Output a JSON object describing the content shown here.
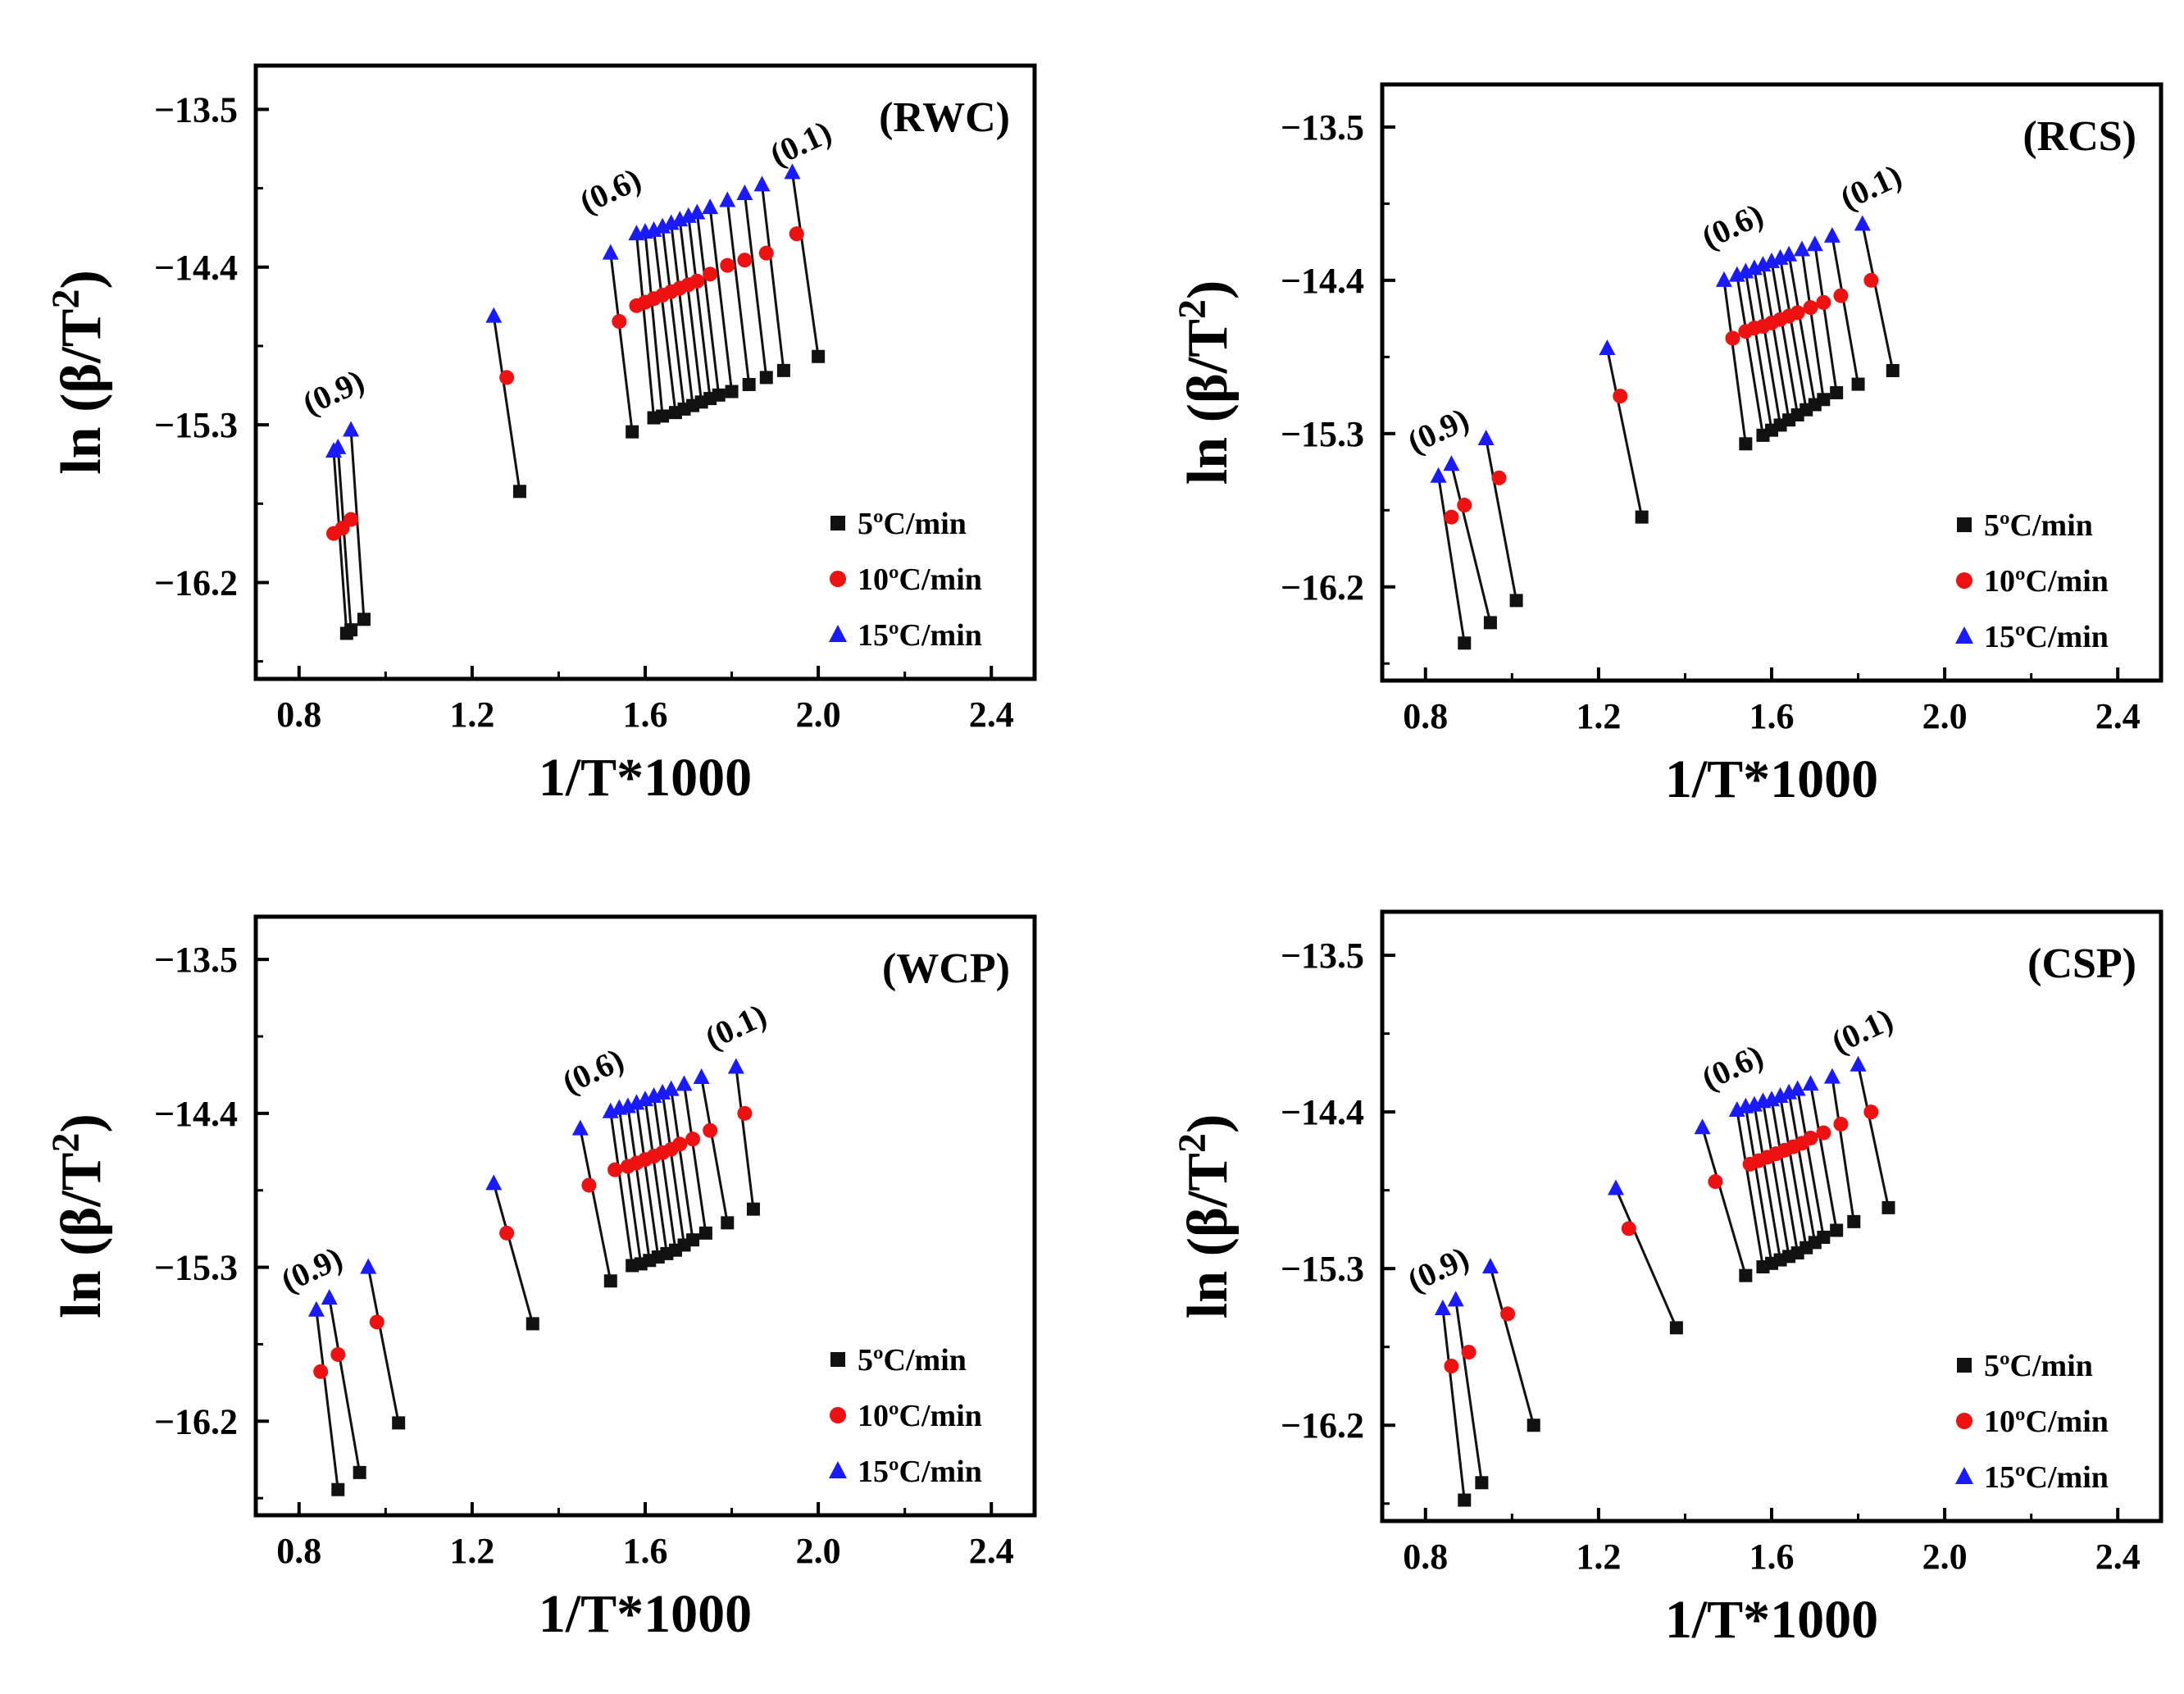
{
  "chart_data": [
    {
      "type": "scatter",
      "panel_label": "(RWC)",
      "xlabel": "1/T*1000",
      "ylabel": "ln (β/T²)",
      "xlim": [
        0.7,
        2.5
      ],
      "ylim": [
        -16.75,
        -13.25
      ],
      "xticks": [
        "0.8",
        "1.2",
        "1.6",
        "2.0",
        "2.4"
      ],
      "yticks": [
        "−13.5",
        "−14.4",
        "−15.3",
        "−16.2"
      ],
      "series": [
        {
          "name": "5ºC/min",
          "marker": "square",
          "color": "#111111",
          "x": [
            2.0,
            1.92,
            1.88,
            1.84,
            1.8,
            1.77,
            1.75,
            1.73,
            1.71,
            1.69,
            1.67,
            1.64,
            1.62,
            1.57,
            1.31,
            0.95,
            0.92,
            0.91
          ],
          "y": [
            -14.91,
            -14.99,
            -15.03,
            -15.07,
            -15.11,
            -15.13,
            -15.15,
            -15.17,
            -15.19,
            -15.21,
            -15.23,
            -15.25,
            -15.26,
            -15.34,
            -15.68,
            -16.41,
            -16.47,
            -16.49
          ]
        },
        {
          "name": "10ºC/min",
          "marker": "circle",
          "color": "#ee1111",
          "x": [
            1.95,
            1.88,
            1.83,
            1.79,
            1.75,
            1.72,
            1.7,
            1.68,
            1.66,
            1.64,
            1.62,
            1.6,
            1.58,
            1.54,
            1.28,
            0.92,
            0.9,
            0.88
          ],
          "y": [
            -14.21,
            -14.32,
            -14.36,
            -14.39,
            -14.44,
            -14.48,
            -14.5,
            -14.52,
            -14.54,
            -14.56,
            -14.58,
            -14.6,
            -14.62,
            -14.71,
            -15.03,
            -15.84,
            -15.89,
            -15.92
          ]
        },
        {
          "name": "15ºC/min",
          "marker": "triangle",
          "color": "#1a1aff",
          "x": [
            1.94,
            1.87,
            1.83,
            1.79,
            1.75,
            1.72,
            1.7,
            1.68,
            1.66,
            1.64,
            1.62,
            1.6,
            1.58,
            1.52,
            1.25,
            0.92,
            0.89,
            0.88
          ],
          "y": [
            -13.86,
            -13.93,
            -13.98,
            -14.02,
            -14.06,
            -14.09,
            -14.11,
            -14.13,
            -14.15,
            -14.17,
            -14.19,
            -14.2,
            -14.21,
            -14.32,
            -14.68,
            -15.33,
            -15.43,
            -15.45
          ]
        }
      ],
      "annotations": [
        {
          "text": "(0.1)",
          "x": 1.97,
          "y": -13.75
        },
        {
          "text": "(0.6)",
          "x": 1.53,
          "y": -14.02
        },
        {
          "text": "(0.9)",
          "x": 0.89,
          "y": -15.17
        }
      ]
    },
    {
      "type": "scatter",
      "panel_label": "(RCS)",
      "xlabel": "1/T*1000",
      "ylabel": "ln (β/T²)",
      "xlim": [
        0.7,
        2.5
      ],
      "ylim": [
        -16.75,
        -13.25
      ],
      "xticks": [
        "0.8",
        "1.2",
        "1.6",
        "2.0",
        "2.4"
      ],
      "yticks": [
        "−13.5",
        "−14.4",
        "−15.3",
        "−16.2"
      ],
      "series": [
        {
          "name": "5ºC/min",
          "marker": "square",
          "color": "#111111",
          "x": [
            1.88,
            1.8,
            1.75,
            1.72,
            1.7,
            1.68,
            1.66,
            1.64,
            1.62,
            1.6,
            1.58,
            1.54,
            1.3,
            1.01,
            0.95,
            0.89
          ],
          "y": [
            -14.93,
            -15.01,
            -15.06,
            -15.1,
            -15.13,
            -15.16,
            -15.19,
            -15.22,
            -15.25,
            -15.28,
            -15.31,
            -15.36,
            -15.79,
            -16.28,
            -16.41,
            -16.53
          ]
        },
        {
          "name": "10ºC/min",
          "marker": "circle",
          "color": "#ee1111",
          "x": [
            1.83,
            1.76,
            1.72,
            1.69,
            1.66,
            1.64,
            1.62,
            1.6,
            1.58,
            1.56,
            1.54,
            1.51,
            1.25,
            0.97,
            0.89,
            0.86
          ],
          "y": [
            -14.4,
            -14.49,
            -14.53,
            -14.56,
            -14.59,
            -14.61,
            -14.63,
            -14.65,
            -14.67,
            -14.68,
            -14.7,
            -14.74,
            -15.08,
            -15.56,
            -15.72,
            -15.79
          ]
        },
        {
          "name": "15ºC/min",
          "marker": "triangle",
          "color": "#1a1aff",
          "x": [
            1.81,
            1.74,
            1.7,
            1.67,
            1.64,
            1.62,
            1.6,
            1.58,
            1.56,
            1.54,
            1.52,
            1.49,
            1.22,
            0.94,
            0.86,
            0.83
          ],
          "y": [
            -14.07,
            -14.14,
            -14.19,
            -14.22,
            -14.25,
            -14.27,
            -14.29,
            -14.31,
            -14.33,
            -14.35,
            -14.37,
            -14.4,
            -14.8,
            -15.33,
            -15.48,
            -15.55
          ]
        }
      ],
      "annotations": [
        {
          "text": "(0.1)",
          "x": 1.84,
          "y": -13.91
        },
        {
          "text": "(0.6)",
          "x": 1.52,
          "y": -14.14
        },
        {
          "text": "(0.9)",
          "x": 0.84,
          "y": -15.34
        }
      ]
    },
    {
      "type": "scatter",
      "panel_label": "(WCP)",
      "xlabel": "1/T*1000",
      "ylabel": "ln (β/T²)",
      "xlim": [
        0.7,
        2.5
      ],
      "ylim": [
        -16.75,
        -13.25
      ],
      "xticks": [
        "0.8",
        "1.2",
        "1.6",
        "2.0",
        "2.4"
      ],
      "yticks": [
        "−13.5",
        "−14.4",
        "−15.3",
        "−16.2"
      ],
      "series": [
        {
          "name": "5ºC/min",
          "marker": "square",
          "color": "#111111",
          "x": [
            1.85,
            1.79,
            1.74,
            1.71,
            1.69,
            1.67,
            1.65,
            1.63,
            1.61,
            1.59,
            1.57,
            1.52,
            1.34,
            1.03,
            0.94,
            0.89
          ],
          "y": [
            -14.96,
            -15.04,
            -15.1,
            -15.14,
            -15.17,
            -15.2,
            -15.22,
            -15.24,
            -15.26,
            -15.28,
            -15.29,
            -15.38,
            -15.63,
            -16.21,
            -16.5,
            -16.6
          ]
        },
        {
          "name": "10ºC/min",
          "marker": "circle",
          "color": "#ee1111",
          "x": [
            1.83,
            1.75,
            1.71,
            1.68,
            1.66,
            1.64,
            1.62,
            1.6,
            1.58,
            1.56,
            1.53,
            1.47,
            1.28,
            0.98,
            0.89,
            0.85
          ],
          "y": [
            -14.4,
            -14.5,
            -14.55,
            -14.58,
            -14.61,
            -14.63,
            -14.65,
            -14.67,
            -14.69,
            -14.71,
            -14.73,
            -14.82,
            -15.1,
            -15.62,
            -15.81,
            -15.91
          ]
        },
        {
          "name": "15ºC/min",
          "marker": "triangle",
          "color": "#1a1aff",
          "x": [
            1.81,
            1.73,
            1.69,
            1.66,
            1.64,
            1.62,
            1.6,
            1.58,
            1.56,
            1.54,
            1.52,
            1.45,
            1.25,
            0.96,
            0.87,
            0.84
          ],
          "y": [
            -14.13,
            -14.19,
            -14.23,
            -14.26,
            -14.28,
            -14.3,
            -14.32,
            -14.34,
            -14.36,
            -14.37,
            -14.39,
            -14.49,
            -14.81,
            -15.3,
            -15.48,
            -15.55
          ]
        }
      ],
      "annotations": [
        {
          "text": "(0.1)",
          "x": 1.82,
          "y": -13.95
        },
        {
          "text": "(0.6)",
          "x": 1.49,
          "y": -14.21
        },
        {
          "text": "(0.9)",
          "x": 0.84,
          "y": -15.37
        }
      ]
    },
    {
      "type": "scatter",
      "panel_label": "(CSP)",
      "xlabel": "1/T*1000",
      "ylabel": "ln (β/T²)",
      "xlim": [
        0.7,
        2.5
      ],
      "ylim": [
        -16.75,
        -13.25
      ],
      "xticks": [
        "0.8",
        "1.2",
        "1.6",
        "2.0",
        "2.4"
      ],
      "yticks": [
        "−13.5",
        "−14.4",
        "−15.3",
        "−16.2"
      ],
      "series": [
        {
          "name": "5ºC/min",
          "marker": "square",
          "color": "#111111",
          "x": [
            1.87,
            1.79,
            1.75,
            1.72,
            1.7,
            1.68,
            1.66,
            1.64,
            1.62,
            1.6,
            1.58,
            1.54,
            1.38,
            1.05,
            0.93,
            0.89
          ],
          "y": [
            -14.95,
            -15.03,
            -15.08,
            -15.12,
            -15.15,
            -15.18,
            -15.21,
            -15.23,
            -15.25,
            -15.27,
            -15.29,
            -15.34,
            -15.64,
            -16.2,
            -16.53,
            -16.63
          ]
        },
        {
          "name": "10ºC/min",
          "marker": "circle",
          "color": "#ee1111",
          "x": [
            1.83,
            1.76,
            1.72,
            1.69,
            1.67,
            1.65,
            1.63,
            1.61,
            1.59,
            1.57,
            1.55,
            1.47,
            1.27,
            0.99,
            0.9,
            0.86
          ],
          "y": [
            -14.4,
            -14.47,
            -14.52,
            -14.55,
            -14.58,
            -14.6,
            -14.62,
            -14.64,
            -14.66,
            -14.68,
            -14.7,
            -14.8,
            -15.07,
            -15.56,
            -15.78,
            -15.86
          ]
        },
        {
          "name": "15ºC/min",
          "marker": "triangle",
          "color": "#1a1aff",
          "x": [
            1.8,
            1.74,
            1.69,
            1.66,
            1.64,
            1.62,
            1.6,
            1.58,
            1.56,
            1.54,
            1.52,
            1.44,
            1.24,
            0.95,
            0.87,
            0.84
          ],
          "y": [
            -14.13,
            -14.2,
            -14.24,
            -14.27,
            -14.29,
            -14.31,
            -14.33,
            -14.34,
            -14.36,
            -14.37,
            -14.39,
            -14.49,
            -14.84,
            -15.29,
            -15.48,
            -15.53
          ]
        }
      ],
      "annotations": [
        {
          "text": "(0.1)",
          "x": 1.82,
          "y": -13.99
        },
        {
          "text": "(0.6)",
          "x": 1.52,
          "y": -14.2
        },
        {
          "text": "(0.9)",
          "x": 0.84,
          "y": -15.36
        }
      ]
    }
  ]
}
